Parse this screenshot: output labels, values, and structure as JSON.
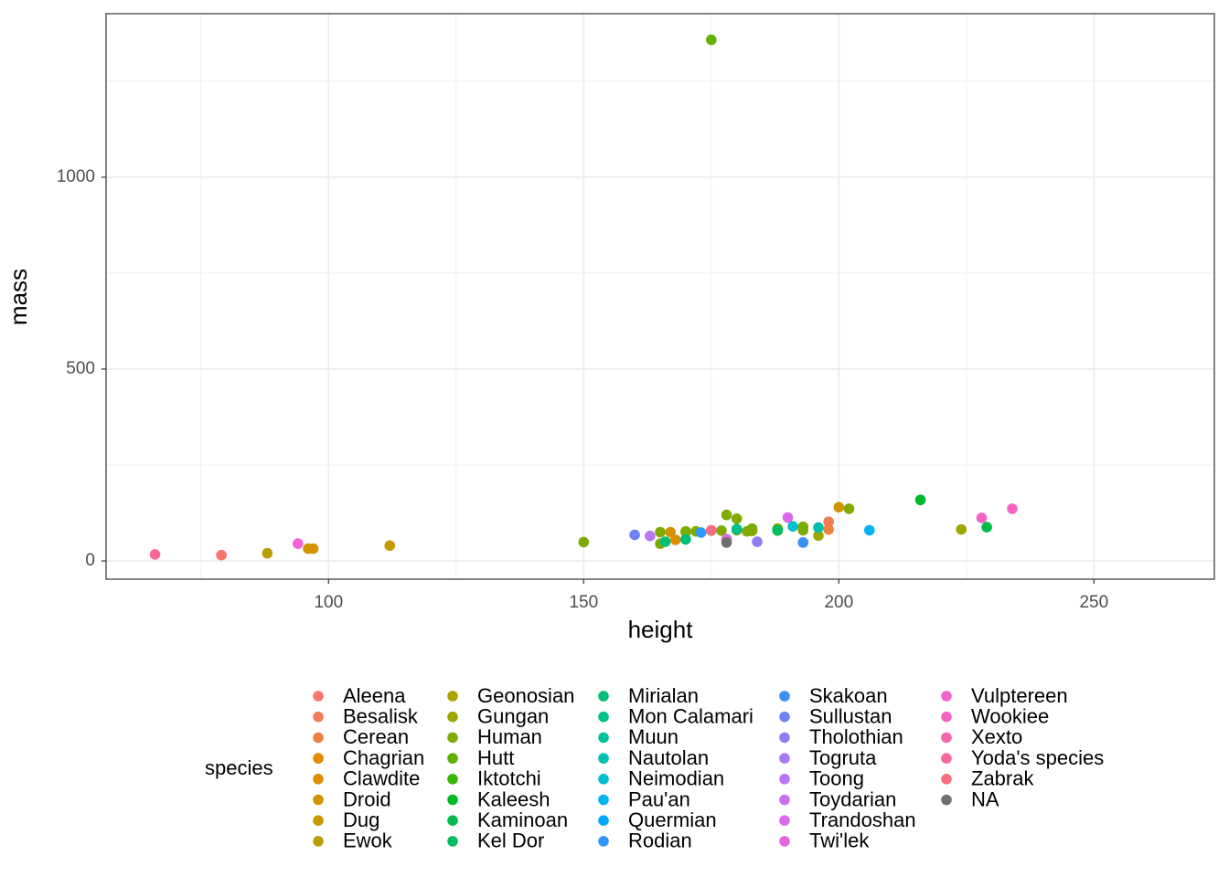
{
  "chart_data": {
    "type": "scatter",
    "x_label": "height",
    "y_label": "mass",
    "legend_title": "species",
    "xlim": [
      56.4,
      273.6
    ],
    "ylim": [
      -47.6,
      1426
    ],
    "xticks": [
      100,
      150,
      200,
      250
    ],
    "yticks": [
      0,
      500,
      1000
    ],
    "grid": true,
    "legend_position": "bottom",
    "series": [
      {
        "name": "Aleena",
        "color": "#F8766D",
        "x": [
          79
        ],
        "values": [
          15
        ]
      },
      {
        "name": "Besalisk",
        "color": "#F37B59",
        "x": [
          198
        ],
        "values": [
          102
        ]
      },
      {
        "name": "Cerean",
        "color": "#ED813E",
        "x": [
          198
        ],
        "values": [
          82
        ]
      },
      {
        "name": "Chagrian",
        "color": "#E58700",
        "x": [],
        "values": []
      },
      {
        "name": "Clawdite",
        "color": "#DC8D00",
        "x": [
          168
        ],
        "values": [
          55
        ]
      },
      {
        "name": "Droid",
        "color": "#D39200",
        "x": [
          167,
          96,
          97,
          200
        ],
        "values": [
          75,
          32,
          32,
          140
        ]
      },
      {
        "name": "Dug",
        "color": "#C79800",
        "x": [
          112
        ],
        "values": [
          40
        ]
      },
      {
        "name": "Ewok",
        "color": "#BB9D00",
        "x": [
          88
        ],
        "values": [
          20
        ]
      },
      {
        "name": "Geonosian",
        "color": "#ADA200",
        "x": [
          183
        ],
        "values": [
          80
        ]
      },
      {
        "name": "Gungan",
        "color": "#9EA700",
        "x": [
          196,
          224
        ],
        "values": [
          66,
          82
        ]
      },
      {
        "name": "Human",
        "color": "#7FAB00",
        "x": [
          172,
          202,
          150,
          178,
          165,
          183,
          182,
          188,
          180,
          170,
          180,
          170,
          183,
          177,
          175,
          165,
          193,
          188,
          193,
          183,
          188
        ],
        "values": [
          77,
          136,
          49,
          120,
          75,
          84,
          77,
          84,
          80,
          77,
          110,
          75,
          78.2,
          79,
          79,
          45,
          89,
          84,
          80,
          79,
          79
        ]
      },
      {
        "name": "Hutt",
        "color": "#5EB300",
        "x": [
          175
        ],
        "values": [
          1358
        ]
      },
      {
        "name": "Iktotchi",
        "color": "#39B600",
        "x": [],
        "values": []
      },
      {
        "name": "Kaleesh",
        "color": "#00B92A",
        "x": [
          216
        ],
        "values": [
          159
        ]
      },
      {
        "name": "Kaminoan",
        "color": "#00BB4B",
        "x": [
          229
        ],
        "values": [
          88
        ]
      },
      {
        "name": "Kel Dor",
        "color": "#00BD62",
        "x": [
          188
        ],
        "values": [
          80
        ]
      },
      {
        "name": "Mirialan",
        "color": "#00BF77",
        "x": [
          170,
          166
        ],
        "values": [
          56.2,
          50
        ]
      },
      {
        "name": "Mon Calamari",
        "color": "#00C08B",
        "x": [
          180
        ],
        "values": [
          83
        ]
      },
      {
        "name": "Muun",
        "color": "#00C19C",
        "x": [],
        "values": []
      },
      {
        "name": "Nautolan",
        "color": "#00C1AD",
        "x": [
          196
        ],
        "values": [
          87
        ]
      },
      {
        "name": "Neimodian",
        "color": "#00BDD0",
        "x": [
          191
        ],
        "values": [
          90
        ]
      },
      {
        "name": "Pau'an",
        "color": "#00B4EF",
        "x": [
          206
        ],
        "values": [
          80
        ]
      },
      {
        "name": "Quermian",
        "color": "#00A9FF",
        "x": [],
        "values": []
      },
      {
        "name": "Rodian",
        "color": "#2E96FF",
        "x": [
          173
        ],
        "values": [
          74
        ]
      },
      {
        "name": "Skakoan",
        "color": "#3A8FF7",
        "x": [
          193
        ],
        "values": [
          48
        ]
      },
      {
        "name": "Sullustan",
        "color": "#6C84F2",
        "x": [
          160
        ],
        "values": [
          68
        ]
      },
      {
        "name": "Tholothian",
        "color": "#8F7DF5",
        "x": [
          184
        ],
        "values": [
          50
        ]
      },
      {
        "name": "Togruta",
        "color": "#A97AF7",
        "x": [
          178
        ],
        "values": [
          57
        ]
      },
      {
        "name": "Toong",
        "color": "#BB75F4",
        "x": [
          163
        ],
        "values": [
          65
        ]
      },
      {
        "name": "Toydarian",
        "color": "#CC6EF0",
        "x": [],
        "values": []
      },
      {
        "name": "Trandoshan",
        "color": "#DB69EC",
        "x": [
          190
        ],
        "values": [
          113
        ]
      },
      {
        "name": "Twi'lek",
        "color": "#E765E0",
        "x": [
          178
        ],
        "values": [
          55
        ]
      },
      {
        "name": "Vulptereen",
        "color": "#F063D3",
        "x": [
          94
        ],
        "values": [
          45
        ]
      },
      {
        "name": "Wookiee",
        "color": "#F563C2",
        "x": [
          228,
          234
        ],
        "values": [
          112,
          136
        ]
      },
      {
        "name": "Xexto",
        "color": "#F865AE",
        "x": [],
        "values": []
      },
      {
        "name": "Yoda's species",
        "color": "#F96898",
        "x": [
          66
        ],
        "values": [
          17
        ]
      },
      {
        "name": "Zabrak",
        "color": "#F96C82",
        "x": [
          175
        ],
        "values": [
          80
        ]
      },
      {
        "name": "NA",
        "color": "#707070",
        "x": [
          178
        ],
        "values": [
          48
        ]
      }
    ]
  }
}
